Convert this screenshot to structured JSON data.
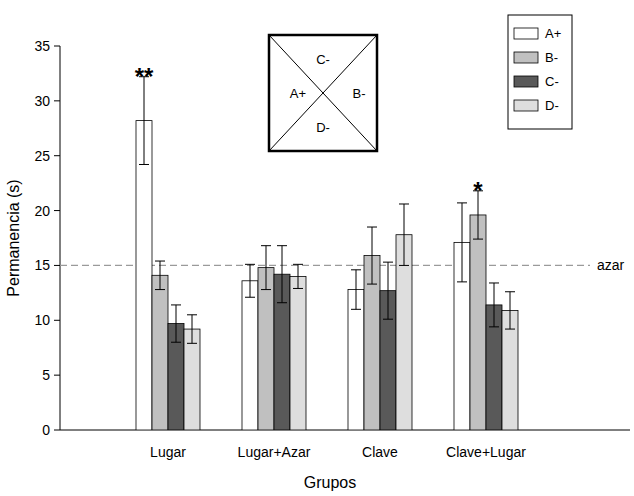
{
  "chart_data": {
    "type": "bar",
    "x_label": "Grupos",
    "y_label": "Permanencia (s)",
    "categories": [
      "Lugar",
      "Lugar+Azar",
      "Clave",
      "Clave+Lugar"
    ],
    "series": [
      {
        "name": "A+",
        "color": "#ffffff",
        "values": [
          28.2,
          13.6,
          12.8,
          17.1
        ],
        "errors": [
          4.0,
          1.5,
          1.8,
          3.6
        ]
      },
      {
        "name": "B-",
        "color": "#c0c0c0",
        "values": [
          14.1,
          14.8,
          15.9,
          19.6
        ],
        "errors": [
          1.3,
          2.0,
          2.6,
          2.2
        ]
      },
      {
        "name": "C-",
        "color": "#595959",
        "values": [
          9.7,
          14.2,
          12.7,
          11.4
        ],
        "errors": [
          1.7,
          2.6,
          2.6,
          2.0
        ]
      },
      {
        "name": "D-",
        "color": "#dedede",
        "values": [
          9.2,
          14.0,
          17.8,
          10.9
        ],
        "errors": [
          1.3,
          1.1,
          2.8,
          1.7
        ]
      }
    ],
    "ylim": [
      0,
      35
    ],
    "yticks": [
      0,
      5,
      10,
      15,
      20,
      25,
      30,
      35
    ],
    "grid": false,
    "legend": "top-right",
    "reference_line": {
      "value": 15,
      "label": "azar"
    },
    "annotations": [
      {
        "text": "**",
        "category": "Lugar",
        "series": "A+"
      },
      {
        "text": "*",
        "category": "Clave+Lugar",
        "series": "B-"
      }
    ],
    "inset_labels": [
      "C-",
      "A+",
      "B-",
      "D-"
    ]
  }
}
